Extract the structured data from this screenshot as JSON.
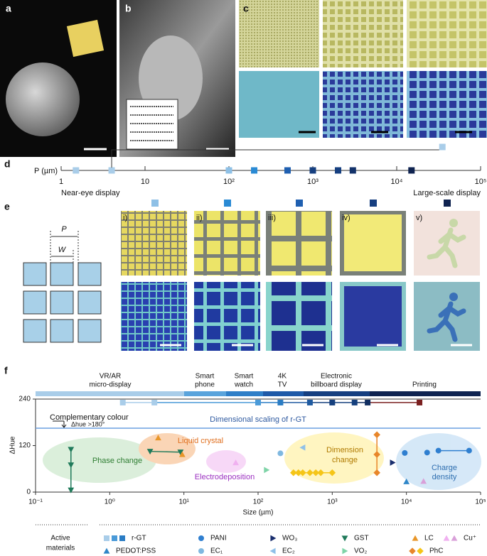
{
  "panel_labels": [
    "a",
    "b",
    "c",
    "d",
    "e",
    "f"
  ],
  "panel_e": {
    "pitch_label": "P",
    "width_label": "W",
    "tiles": [
      "i)",
      "ii)",
      "iii)",
      "iv)",
      "v)"
    ]
  },
  "chart_data": [
    {
      "type": "strip",
      "axis_label": "P (µm)",
      "log": true,
      "xlim": [
        1,
        100000
      ],
      "xticks": [
        1,
        10,
        {
          "value": 100,
          "label": "10²"
        },
        {
          "value": 1000,
          "label": "10³"
        },
        {
          "value": 10000,
          "label": "10⁴"
        },
        {
          "value": 100000,
          "label": "10⁵"
        }
      ],
      "annotations": [
        "Near-eye display",
        "Large-scale display"
      ],
      "series": [
        {
          "values": [
            1.5,
            4,
            100,
            200,
            500,
            1000,
            2000,
            3000,
            15000
          ],
          "colors": [
            "#a9cde9",
            "#a9cde9",
            "#8ec0e6",
            "#2a8ad4",
            "#1f5fb0",
            "#163f80",
            "#163f80",
            "#13326a",
            "#0f2350"
          ]
        },
        {
          "values": [
            35000
          ],
          "colors": [
            "#a9cde9"
          ]
        }
      ]
    },
    {
      "type": "scatter",
      "xlabel": "Size (µm)",
      "ylabel": "ΔHue",
      "log_x": true,
      "xlim": [
        0.1,
        100000
      ],
      "ylim": [
        0,
        240
      ],
      "yticks": [
        0,
        120,
        240
      ],
      "xticks": [
        {
          "value": 0.1,
          "label": "10⁻¹"
        },
        {
          "value": 1,
          "label": "10⁰"
        },
        {
          "value": 10,
          "label": "10¹"
        },
        {
          "value": 100,
          "label": "10²"
        },
        {
          "value": 1000,
          "label": "10³"
        },
        {
          "value": 10000,
          "label": "10⁴"
        },
        {
          "value": 100000,
          "label": "10⁵"
        }
      ],
      "application_bands": [
        [
          "VR/AR",
          "micro-display"
        ],
        [
          "Smart",
          "phone"
        ],
        [
          "Smart",
          "watch"
        ],
        [
          "4K",
          "TV"
        ],
        [
          "Electronic",
          "billboard display"
        ],
        [
          "Printing"
        ]
      ],
      "reference_line": {
        "value": 165,
        "label": "Complementary colour",
        "sublabel": "Δhue >180°"
      },
      "annotations": [
        "Dimensional scaling of r-GT"
      ],
      "regions": [
        [
          "Phase change"
        ],
        [
          "Liquid crystal"
        ],
        [
          "Electrodeposition"
        ],
        [
          "Dimension",
          "change"
        ],
        [
          "Charge",
          "density"
        ]
      ],
      "legend_title": [
        "Active",
        "materials"
      ],
      "series": [
        {
          "name": "r-GT",
          "marker": "square",
          "connected": true,
          "x": [
            1.5,
            4,
            100,
            200,
            500,
            1000,
            2000,
            3000,
            15000
          ],
          "values": [
            231,
            231,
            231,
            231,
            231,
            231,
            231,
            231,
            231
          ],
          "colors": [
            "#a9cde9",
            "#a9cde9",
            "#4a9ad8",
            "#2a7cc4",
            "#1f5aa0",
            "#16407e",
            "#16407e",
            "#102e60",
            "#7a1f1f"
          ]
        },
        {
          "name": "PANI",
          "marker": "circle",
          "connected": true,
          "x": [
            9500,
            null,
            19000,
            null,
            27000,
            70000
          ],
          "values": [
            101,
            null,
            102,
            null,
            107,
            107
          ],
          "colors": [
            "#2f7fd0",
            null,
            "#2f7fd0",
            null,
            "#2f7fd0",
            "#2f7fd0"
          ]
        },
        {
          "name": "WO₃",
          "marker": "right",
          "x": [
            6500
          ],
          "values": [
            76
          ],
          "colors": [
            "#1a2f6e"
          ]
        },
        {
          "name": "GST",
          "marker": "down",
          "connected": true,
          "x": [
            0.3,
            0.3,
            0.3,
            null,
            3.5,
            9
          ],
          "values": [
            110,
            70,
            5,
            null,
            105,
            103
          ],
          "colors": [
            "#1f7a5a",
            "#1f7a5a",
            "#1f7a5a",
            null,
            "#1f7a5a",
            "#1f7a5a"
          ]
        },
        {
          "name": "LC",
          "marker": "up",
          "x": [
            4.5,
            9.5
          ],
          "values": [
            140,
            97
          ],
          "colors": [
            "#e8962a",
            "#e8962a"
          ]
        },
        {
          "name": "Cu⁺",
          "marker": "up",
          "x": [
            50,
            17000
          ],
          "values": [
            76,
            28
          ],
          "colors": [
            "#f0b0f0",
            "#d9a0d9"
          ]
        },
        {
          "name": "PEDOT:PSS",
          "marker": "up",
          "x": [
            10000
          ],
          "values": [
            27
          ],
          "colors": [
            "#2f86c8"
          ]
        },
        {
          "name": "EC₁",
          "marker": "circle",
          "x": [
            200
          ],
          "values": [
            100
          ],
          "colors": [
            "#7fb8e0"
          ]
        },
        {
          "name": "EC₂",
          "marker": "left",
          "x": [
            400
          ],
          "values": [
            115
          ],
          "colors": [
            "#8fc0e8"
          ]
        },
        {
          "name": "VO₂",
          "marker": "right",
          "x": [
            130
          ],
          "values": [
            57
          ],
          "colors": [
            "#7fd4a8"
          ]
        },
        {
          "name": "PhC",
          "marker": "diamond",
          "connected": true,
          "x": [
            4000,
            4000,
            4000,
            null,
            300,
            350,
            400,
            500,
            600,
            700,
            1000
          ],
          "values": [
            148,
            97,
            50,
            null,
            50,
            50,
            50,
            50,
            50,
            50,
            50
          ],
          "colors": [
            "#e8862a",
            "#e8862a",
            "#e8862a",
            null,
            "#f5c518",
            "#f5c518",
            "#f5c518",
            "#f5c518",
            "#f5c518",
            "#f5c518",
            "#f5c518"
          ]
        }
      ]
    }
  ]
}
